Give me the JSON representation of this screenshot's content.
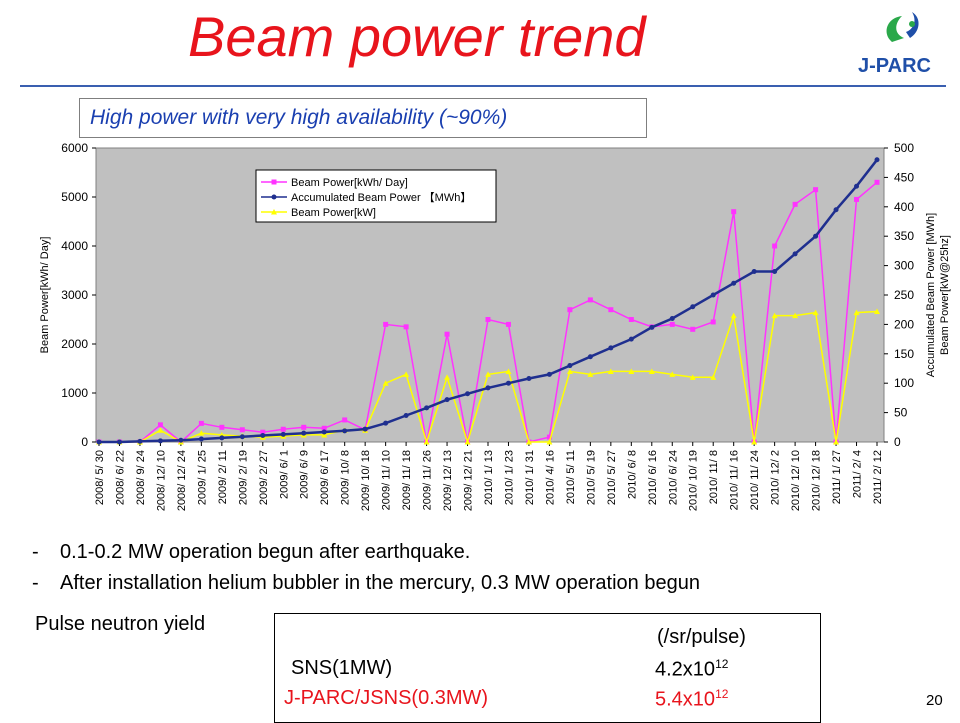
{
  "title": "Beam power trend",
  "subtitle": "High power with very high availability (~90%)",
  "logo_text": "J-PARC",
  "chart_data": {
    "type": "line",
    "legend": [
      "Beam Power[kWh/ Day]",
      "Accumulated Beam Power 【MWh】",
      "Beam Power[kW]"
    ],
    "legend_placement": "top-left",
    "ylabel_left": "Beam Power[kWh/ Day]",
    "ylabel_right": "Accumulated Beam Power [MWh]\nBeam Power[kW@25hz]",
    "ylim_left": [
      0,
      6000
    ],
    "ylim_right": [
      0,
      500
    ],
    "yticks_left": [
      "0",
      "1000",
      "2000",
      "3000",
      "4000",
      "5000",
      "6000"
    ],
    "yticks_right": [
      "0",
      "50",
      "100",
      "150",
      "200",
      "250",
      "300",
      "350",
      "400",
      "450",
      "500"
    ],
    "categories": [
      "2008/ 5/ 30",
      "2008/ 6/ 22",
      "2008/ 9/ 24",
      "2008/ 12/ 10",
      "2008/ 12/ 24",
      "2009/ 1/ 25",
      "2009/ 2/ 11",
      "2009/ 2/ 19",
      "2009/ 2/ 27",
      "2009/ 6/ 1",
      "2009/ 6/ 9",
      "2009/ 6/ 17",
      "2009/ 10/ 8",
      "2009/ 10/ 18",
      "2009/ 11/ 10",
      "2009/ 11/ 18",
      "2009/ 11/ 26",
      "2009/ 12/ 13",
      "2009/ 12/ 21",
      "2010/ 1/ 13",
      "2010/ 1/ 23",
      "2010/ 1/ 31",
      "2010/ 4/ 16",
      "2010/ 5/ 11",
      "2010/ 5/ 19",
      "2010/ 5/ 27",
      "2010/ 6/ 8",
      "2010/ 6/ 16",
      "2010/ 6/ 24",
      "2010/ 10/ 19",
      "2010/ 11/ 8",
      "2010/ 11/ 16",
      "2010/ 11/ 24",
      "2010/ 12/ 2",
      "2010/ 12/ 10",
      "2010/ 12/ 18",
      "2011/ 1/ 27",
      "2011/ 2/ 4",
      "2011/ 2/ 12"
    ],
    "series": [
      {
        "name": "Beam Power[kWh/ Day]",
        "axis": "left",
        "color": "#ff33ff",
        "values": [
          0,
          0,
          0,
          350,
          0,
          380,
          300,
          250,
          200,
          260,
          300,
          280,
          450,
          250,
          2400,
          2350,
          0,
          2200,
          0,
          2500,
          2400,
          0,
          100,
          2700,
          2900,
          2700,
          2500,
          2350,
          2400,
          2300,
          2450,
          4700,
          0,
          4000,
          4850,
          5150,
          0,
          4950,
          5300
        ]
      },
      {
        "name": "Accumulated Beam Power 【MWh】",
        "axis": "right",
        "color": "#1f2f8f",
        "values": [
          0,
          0,
          1,
          2,
          3,
          5,
          7,
          9,
          11,
          13,
          15,
          17,
          19,
          22,
          32,
          45,
          58,
          72,
          82,
          92,
          100,
          108,
          115,
          130,
          145,
          160,
          175,
          195,
          210,
          230,
          250,
          270,
          290,
          290,
          320,
          350,
          395,
          435,
          480
        ]
      },
      {
        "name": "Beam Power[kW]",
        "axis": "right",
        "color": "#ffff00",
        "values": [
          0,
          0,
          0,
          20,
          0,
          15,
          12,
          10,
          8,
          10,
          12,
          12,
          20,
          20,
          100,
          115,
          0,
          110,
          0,
          115,
          120,
          0,
          0,
          120,
          115,
          120,
          120,
          120,
          115,
          110,
          110,
          215,
          0,
          215,
          215,
          220,
          0,
          220,
          222
        ]
      }
    ]
  },
  "bullets": [
    "0.1-0.2 MW operation begun after earthquake.",
    "After installation helium bubbler in the mercury, 0.3 MW operation begun"
  ],
  "bullet_marker": "-",
  "yield_label": "Pulse neutron yield",
  "yield_table": {
    "unit": "(/sr/pulse)",
    "rows": [
      {
        "facility": "SNS(1MW)",
        "base": "4.2x10",
        "exp": "12"
      },
      {
        "facility": "J-PARC/JSNS(0.3MW)",
        "base": "5.4x10",
        "exp": "12"
      }
    ]
  },
  "page_number": "20"
}
